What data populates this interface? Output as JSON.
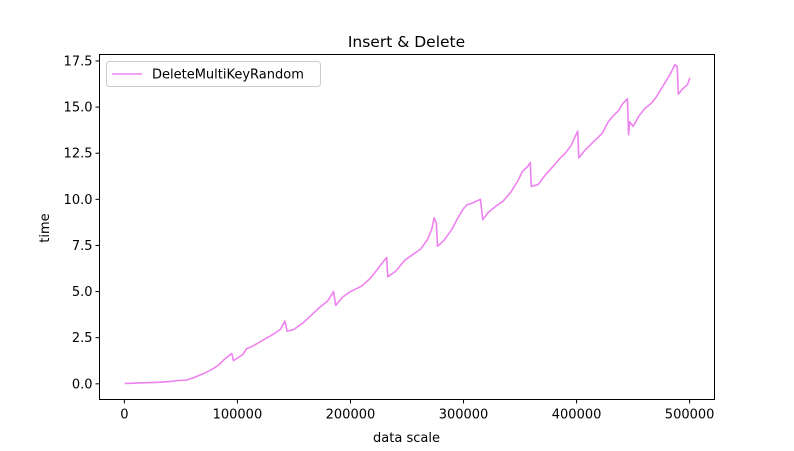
{
  "chart_data": {
    "type": "line",
    "title": "Insert & Delete",
    "xlabel": "data scale",
    "ylabel": "time",
    "xlim": [
      -22000,
      522000
    ],
    "ylim": [
      -0.85,
      17.85
    ],
    "xticks": [
      0,
      100000,
      200000,
      300000,
      400000,
      500000
    ],
    "xtick_labels": [
      "0",
      "100000",
      "200000",
      "300000",
      "400000",
      "500000"
    ],
    "yticks": [
      0.0,
      2.5,
      5.0,
      7.5,
      10.0,
      12.5,
      15.0,
      17.5
    ],
    "ytick_labels": [
      "0.0",
      "2.5",
      "5.0",
      "7.5",
      "10.0",
      "12.5",
      "15.0",
      "17.5"
    ],
    "grid": false,
    "legend_position": "top-left",
    "series": [
      {
        "name": "DeleteMultiKeyRandom",
        "color": "#ee82ee",
        "points": [
          [
            1000,
            0.02
          ],
          [
            10000,
            0.04
          ],
          [
            20000,
            0.06
          ],
          [
            30000,
            0.08
          ],
          [
            40000,
            0.12
          ],
          [
            48000,
            0.18
          ],
          [
            55000,
            0.2
          ],
          [
            62000,
            0.35
          ],
          [
            70000,
            0.55
          ],
          [
            78000,
            0.8
          ],
          [
            83000,
            1.0
          ],
          [
            88000,
            1.3
          ],
          [
            92000,
            1.5
          ],
          [
            95000,
            1.65
          ],
          [
            96500,
            1.25
          ],
          [
            100000,
            1.4
          ],
          [
            105000,
            1.6
          ],
          [
            108000,
            1.9
          ],
          [
            112000,
            2.0
          ],
          [
            118000,
            2.2
          ],
          [
            125000,
            2.45
          ],
          [
            132000,
            2.7
          ],
          [
            138000,
            2.95
          ],
          [
            142000,
            3.4
          ],
          [
            144000,
            2.85
          ],
          [
            150000,
            2.95
          ],
          [
            158000,
            3.3
          ],
          [
            165000,
            3.7
          ],
          [
            172000,
            4.1
          ],
          [
            180000,
            4.5
          ],
          [
            185000,
            5.0
          ],
          [
            187000,
            4.25
          ],
          [
            193000,
            4.7
          ],
          [
            200000,
            5.0
          ],
          [
            210000,
            5.3
          ],
          [
            218000,
            5.75
          ],
          [
            225000,
            6.3
          ],
          [
            230000,
            6.7
          ],
          [
            232000,
            6.85
          ],
          [
            233000,
            5.8
          ],
          [
            240000,
            6.1
          ],
          [
            248000,
            6.7
          ],
          [
            255000,
            7.0
          ],
          [
            262000,
            7.3
          ],
          [
            268000,
            7.8
          ],
          [
            272000,
            8.4
          ],
          [
            274000,
            9.0
          ],
          [
            276000,
            8.7
          ],
          [
            277000,
            7.45
          ],
          [
            283000,
            7.8
          ],
          [
            290000,
            8.4
          ],
          [
            295000,
            9.0
          ],
          [
            300000,
            9.5
          ],
          [
            303000,
            9.7
          ],
          [
            308000,
            9.8
          ],
          [
            315000,
            10.0
          ],
          [
            317000,
            8.9
          ],
          [
            322000,
            9.3
          ],
          [
            328000,
            9.6
          ],
          [
            335000,
            9.9
          ],
          [
            342000,
            10.4
          ],
          [
            348000,
            11.0
          ],
          [
            352000,
            11.5
          ],
          [
            357000,
            11.8
          ],
          [
            359000,
            12.0
          ],
          [
            360000,
            10.7
          ],
          [
            366000,
            10.8
          ],
          [
            372000,
            11.3
          ],
          [
            378000,
            11.7
          ],
          [
            385000,
            12.2
          ],
          [
            390000,
            12.5
          ],
          [
            395000,
            12.9
          ],
          [
            398000,
            13.3
          ],
          [
            401000,
            13.7
          ],
          [
            402000,
            12.25
          ],
          [
            408000,
            12.7
          ],
          [
            413000,
            13.0
          ],
          [
            418000,
            13.3
          ],
          [
            423000,
            13.6
          ],
          [
            428000,
            14.2
          ],
          [
            432000,
            14.5
          ],
          [
            437000,
            14.8
          ],
          [
            441000,
            15.2
          ],
          [
            445000,
            15.45
          ],
          [
            446000,
            13.5
          ],
          [
            447000,
            14.2
          ],
          [
            450000,
            13.95
          ],
          [
            455000,
            14.5
          ],
          [
            460000,
            14.9
          ],
          [
            466000,
            15.2
          ],
          [
            470000,
            15.5
          ],
          [
            474000,
            15.9
          ],
          [
            478000,
            16.3
          ],
          [
            482000,
            16.7
          ],
          [
            485000,
            17.05
          ],
          [
            487000,
            17.3
          ],
          [
            489000,
            17.2
          ],
          [
            490000,
            15.7
          ],
          [
            494000,
            16.0
          ],
          [
            498000,
            16.2
          ],
          [
            500000,
            16.55
          ]
        ]
      }
    ]
  }
}
